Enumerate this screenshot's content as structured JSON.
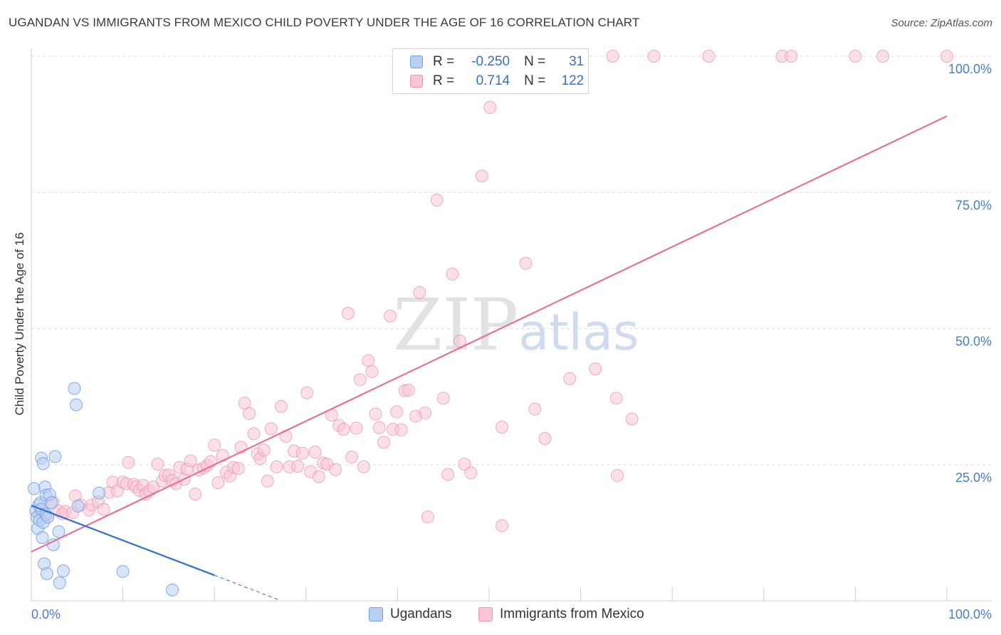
{
  "title": "UGANDAN VS IMMIGRANTS FROM MEXICO CHILD POVERTY UNDER THE AGE OF 16 CORRELATION CHART",
  "source": "Source: ZipAtlas.com",
  "watermark": {
    "zip": "ZIP",
    "atlas": "atlas"
  },
  "legend": {
    "rows": [
      {
        "r_label": "R =",
        "r_value": "-0.250",
        "n_label": "N =",
        "n_value": "31",
        "color": "#6fa0e0",
        "fill": "#b8d0f2"
      },
      {
        "r_label": "R =",
        "r_value": "0.714",
        "n_label": "N =",
        "n_value": "122",
        "color": "#ee92b0",
        "fill": "#f8c6d6"
      }
    ]
  },
  "bottom_legend": {
    "series1": "Ugandans",
    "series2": "Immigrants from Mexico"
  },
  "colors": {
    "blue": "#6fa0e0",
    "pink": "#ee92b0",
    "blue_line": "#3070d0",
    "pink_line": "#e8709a",
    "tick": "#4a7cc7",
    "grid": "#dddddd"
  },
  "chart_data": {
    "type": "scatter",
    "title": "UGANDAN VS IMMIGRANTS FROM MEXICO CHILD POVERTY UNDER THE AGE OF 16 CORRELATION CHART",
    "xlabel": "",
    "ylabel": "Child Poverty Under the Age of 16",
    "xlim": [
      0,
      100
    ],
    "ylim": [
      0,
      100
    ],
    "x_tick_labels": [
      "0.0%",
      "100.0%"
    ],
    "y_ticks": [
      25,
      50,
      75,
      100
    ],
    "y_tick_labels": [
      "25.0%",
      "50.0%",
      "75.0%",
      "100.0%"
    ],
    "grid": true,
    "legend_position": "top-center",
    "series": [
      {
        "name": "Ugandans",
        "points": [
          [
            0.3,
            20.6
          ],
          [
            0.5,
            16.5
          ],
          [
            0.6,
            15.3
          ],
          [
            0.7,
            13.3
          ],
          [
            0.8,
            17.6
          ],
          [
            0.9,
            14.8
          ],
          [
            1.0,
            18.0
          ],
          [
            1.1,
            16.8
          ],
          [
            1.2,
            11.6
          ],
          [
            1.3,
            14.4
          ],
          [
            1.1,
            26.2
          ],
          [
            1.3,
            25.2
          ],
          [
            1.4,
            6.8
          ],
          [
            1.5,
            20.9
          ],
          [
            1.6,
            19.4
          ],
          [
            1.6,
            15.9
          ],
          [
            1.7,
            5.0
          ],
          [
            1.8,
            15.4
          ],
          [
            2.0,
            19.5
          ],
          [
            2.2,
            18.0
          ],
          [
            2.4,
            10.3
          ],
          [
            2.6,
            26.5
          ],
          [
            3.0,
            12.7
          ],
          [
            3.1,
            3.3
          ],
          [
            3.5,
            5.5
          ],
          [
            4.7,
            39.0
          ],
          [
            4.9,
            36.0
          ],
          [
            5.1,
            17.4
          ],
          [
            7.4,
            19.8
          ],
          [
            10.0,
            5.4
          ],
          [
            15.4,
            2.0
          ]
        ],
        "trend": {
          "x": [
            0,
            20
          ],
          "y": [
            17.5,
            4.7
          ],
          "dashed_to": [
            27,
            0.2
          ]
        }
      },
      {
        "name": "Immigrants from Mexico",
        "points": [
          [
            0.8,
            15.8
          ],
          [
            1.2,
            16.5
          ],
          [
            1.8,
            15.4
          ],
          [
            2.4,
            18.1
          ],
          [
            3.0,
            16.5
          ],
          [
            3.4,
            16.0
          ],
          [
            3.7,
            16.4
          ],
          [
            4.5,
            16.2
          ],
          [
            4.8,
            19.3
          ],
          [
            5.4,
            17.6
          ],
          [
            6.3,
            16.7
          ],
          [
            6.6,
            17.6
          ],
          [
            7.3,
            18.2
          ],
          [
            7.9,
            16.8
          ],
          [
            8.5,
            19.9
          ],
          [
            8.9,
            21.8
          ],
          [
            9.4,
            20.2
          ],
          [
            10.0,
            21.8
          ],
          [
            10.4,
            21.5
          ],
          [
            10.6,
            25.4
          ],
          [
            11.2,
            21.4
          ],
          [
            11.4,
            20.9
          ],
          [
            11.8,
            20.3
          ],
          [
            12.2,
            21.2
          ],
          [
            12.5,
            19.6
          ],
          [
            12.9,
            20.2
          ],
          [
            13.3,
            20.9
          ],
          [
            13.8,
            25.1
          ],
          [
            14.3,
            22.0
          ],
          [
            14.6,
            23.0
          ],
          [
            15.0,
            23.1
          ],
          [
            15.4,
            22.1
          ],
          [
            15.8,
            21.5
          ],
          [
            16.2,
            24.5
          ],
          [
            16.7,
            22.3
          ],
          [
            17.0,
            24.2
          ],
          [
            17.4,
            25.7
          ],
          [
            17.9,
            19.6
          ],
          [
            18.3,
            24.0
          ],
          [
            18.8,
            24.4
          ],
          [
            19.2,
            24.9
          ],
          [
            19.6,
            25.6
          ],
          [
            20.0,
            28.6
          ],
          [
            20.4,
            21.7
          ],
          [
            20.9,
            26.7
          ],
          [
            21.3,
            23.6
          ],
          [
            21.7,
            22.9
          ],
          [
            22.1,
            24.5
          ],
          [
            22.6,
            24.3
          ],
          [
            22.9,
            28.2
          ],
          [
            23.3,
            36.3
          ],
          [
            23.8,
            34.4
          ],
          [
            24.3,
            30.7
          ],
          [
            24.7,
            27.0
          ],
          [
            25.0,
            26.1
          ],
          [
            25.4,
            27.7
          ],
          [
            25.8,
            22.0
          ],
          [
            26.2,
            31.6
          ],
          [
            26.8,
            24.6
          ],
          [
            27.3,
            35.7
          ],
          [
            27.8,
            30.2
          ],
          [
            28.2,
            24.6
          ],
          [
            28.7,
            27.5
          ],
          [
            29.1,
            24.7
          ],
          [
            29.6,
            27.1
          ],
          [
            30.1,
            38.2
          ],
          [
            30.5,
            23.7
          ],
          [
            31.0,
            27.3
          ],
          [
            31.4,
            22.8
          ],
          [
            31.9,
            25.3
          ],
          [
            32.3,
            25.1
          ],
          [
            32.8,
            34.1
          ],
          [
            33.2,
            24.1
          ],
          [
            33.6,
            32.2
          ],
          [
            34.1,
            31.5
          ],
          [
            34.6,
            52.8
          ],
          [
            35.0,
            26.4
          ],
          [
            35.5,
            31.7
          ],
          [
            35.9,
            40.6
          ],
          [
            36.3,
            24.6
          ],
          [
            36.8,
            44.1
          ],
          [
            37.2,
            42.1
          ],
          [
            37.6,
            34.3
          ],
          [
            38.0,
            31.8
          ],
          [
            38.5,
            29.1
          ],
          [
            39.2,
            52.3
          ],
          [
            39.5,
            31.5
          ],
          [
            39.9,
            34.7
          ],
          [
            40.4,
            31.4
          ],
          [
            40.8,
            38.6
          ],
          [
            41.2,
            38.7
          ],
          [
            42.4,
            56.6
          ],
          [
            42.0,
            33.9
          ],
          [
            43.0,
            34.5
          ],
          [
            43.3,
            15.4
          ],
          [
            44.3,
            73.6
          ],
          [
            45.0,
            37.2
          ],
          [
            45.5,
            23.2
          ],
          [
            46.0,
            60.0
          ],
          [
            46.8,
            47.7
          ],
          [
            47.3,
            25.1
          ],
          [
            48.0,
            23.5
          ],
          [
            49.2,
            78.0
          ],
          [
            50.1,
            90.6
          ],
          [
            51.4,
            31.9
          ],
          [
            51.4,
            13.8
          ],
          [
            54.0,
            62.0
          ],
          [
            55.0,
            35.2
          ],
          [
            56.1,
            29.8
          ],
          [
            58.8,
            40.8
          ],
          [
            61.6,
            42.6
          ],
          [
            63.5,
            100
          ],
          [
            63.9,
            37.2
          ],
          [
            64.0,
            23.0
          ],
          [
            65.6,
            33.4
          ],
          [
            68.0,
            100
          ],
          [
            74.0,
            100
          ],
          [
            82.0,
            100
          ],
          [
            83.0,
            100
          ],
          [
            90.0,
            100
          ],
          [
            93.0,
            100
          ],
          [
            100.0,
            100
          ]
        ],
        "trend": {
          "x": [
            0,
            100
          ],
          "y": [
            9.0,
            89.0
          ]
        }
      }
    ]
  }
}
